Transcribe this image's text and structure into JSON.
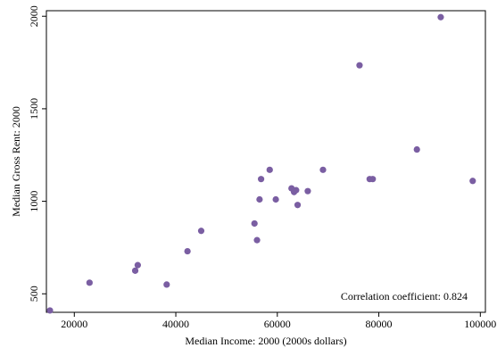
{
  "chart_data": {
    "type": "scatter",
    "title": "",
    "xlabel": "Median Income: 2000 (2000s dollars)",
    "ylabel": "Median Gross Rent: 2000",
    "xlim": [
      14500,
      101000
    ],
    "ylim": [
      400,
      2030
    ],
    "x_ticks": [
      20000,
      40000,
      60000,
      80000,
      100000
    ],
    "x_tick_labels": [
      "20000",
      "40000",
      "60000",
      "80000",
      "100000"
    ],
    "y_ticks": [
      500,
      1000,
      1500,
      2000
    ],
    "y_tick_labels": [
      "500",
      "1000",
      "1500",
      "2000"
    ],
    "grid": false,
    "marker_color": "#7a5ea2",
    "annotation": "Correlation coefficient: 0.824",
    "points": [
      {
        "x": 15200,
        "y": 410
      },
      {
        "x": 23000,
        "y": 560
      },
      {
        "x": 32000,
        "y": 625
      },
      {
        "x": 32500,
        "y": 655
      },
      {
        "x": 38200,
        "y": 550
      },
      {
        "x": 42300,
        "y": 730
      },
      {
        "x": 45000,
        "y": 840
      },
      {
        "x": 55500,
        "y": 880
      },
      {
        "x": 56000,
        "y": 790
      },
      {
        "x": 56500,
        "y": 1010
      },
      {
        "x": 56800,
        "y": 1120
      },
      {
        "x": 58500,
        "y": 1170
      },
      {
        "x": 59700,
        "y": 1010
      },
      {
        "x": 62800,
        "y": 1070
      },
      {
        "x": 63300,
        "y": 1050
      },
      {
        "x": 63700,
        "y": 1060
      },
      {
        "x": 64000,
        "y": 980
      },
      {
        "x": 66000,
        "y": 1055
      },
      {
        "x": 69000,
        "y": 1170
      },
      {
        "x": 76200,
        "y": 1735
      },
      {
        "x": 78200,
        "y": 1120
      },
      {
        "x": 78800,
        "y": 1120
      },
      {
        "x": 87500,
        "y": 1280
      },
      {
        "x": 92200,
        "y": 1995
      },
      {
        "x": 98500,
        "y": 1110
      }
    ]
  }
}
